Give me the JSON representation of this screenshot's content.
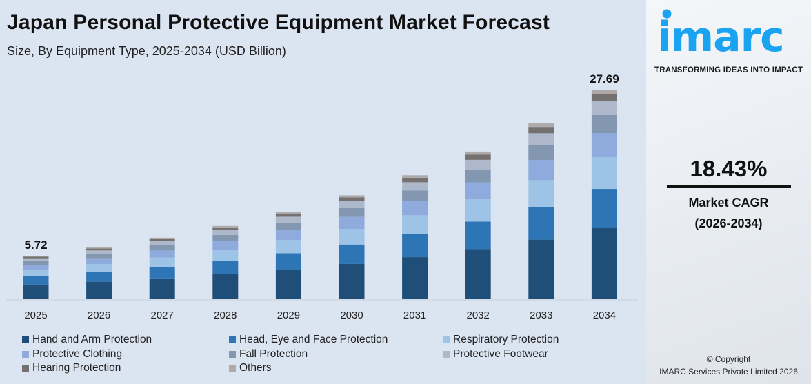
{
  "header": {
    "title": "Japan Personal Protective Equipment Market Forecast",
    "subtitle": "Size, By Equipment Type, 2025-2034 (USD Billion)"
  },
  "chart_data": {
    "type": "bar",
    "stacked": true,
    "title": "Japan Personal Protective Equipment Market Forecast",
    "subtitle": "Size, By Equipment Type, 2025-2034 (USD Billion)",
    "categories": [
      "2025",
      "2026",
      "2027",
      "2028",
      "2029",
      "2030",
      "2031",
      "2032",
      "2033",
      "2034"
    ],
    "ylim": [
      0,
      28
    ],
    "grid": false,
    "legend_position": "bottom",
    "data_labels": {
      "2025": "5.72",
      "2034": "27.69"
    },
    "series": [
      {
        "name": "Hand and Arm Protection",
        "color": "#1f4e79",
        "values": [
          1.94,
          2.31,
          2.75,
          3.28,
          3.91,
          4.65,
          5.55,
          6.61,
          7.87,
          9.38
        ]
      },
      {
        "name": "Head, Eye and Face Protection",
        "color": "#2e75b6",
        "values": [
          1.07,
          1.28,
          1.52,
          1.81,
          2.16,
          2.57,
          3.06,
          3.65,
          4.34,
          5.19
        ]
      },
      {
        "name": "Respiratory Protection",
        "color": "#9dc3e6",
        "values": [
          0.86,
          1.03,
          1.23,
          1.46,
          1.74,
          2.07,
          2.47,
          2.94,
          3.51,
          4.19
        ]
      },
      {
        "name": "Protective Clothing",
        "color": "#8faadc",
        "values": [
          0.66,
          0.78,
          0.93,
          1.11,
          1.33,
          1.58,
          1.88,
          2.24,
          2.67,
          3.19
        ]
      },
      {
        "name": "Fall Protection",
        "color": "#8497b0",
        "values": [
          0.49,
          0.59,
          0.7,
          0.83,
          0.99,
          1.18,
          1.41,
          1.68,
          2.0,
          2.37
        ]
      },
      {
        "name": "Protective Footwear",
        "color": "#adb9ca",
        "values": [
          0.38,
          0.45,
          0.54,
          0.64,
          0.76,
          0.91,
          1.08,
          1.29,
          1.53,
          1.82
        ]
      },
      {
        "name": "Hearing Protection",
        "color": "#767171",
        "values": [
          0.21,
          0.25,
          0.29,
          0.35,
          0.42,
          0.49,
          0.59,
          0.7,
          0.84,
          1.0
        ]
      },
      {
        "name": "Others",
        "color": "#aeaaaa",
        "values": [
          0.11,
          0.14,
          0.16,
          0.19,
          0.23,
          0.27,
          0.33,
          0.39,
          0.46,
          0.55
        ]
      }
    ]
  },
  "brand": {
    "logo_text": "imarc",
    "tagline": "TRANSFORMING IDEAS INTO IMPACT",
    "color": "#1aa3f0"
  },
  "cagr": {
    "value": "18.43%",
    "label": "Market CAGR",
    "period": "(2026-2034)"
  },
  "footer": {
    "copyright": "© Copyright",
    "company": "IMARC Services Private Limited 2026"
  }
}
